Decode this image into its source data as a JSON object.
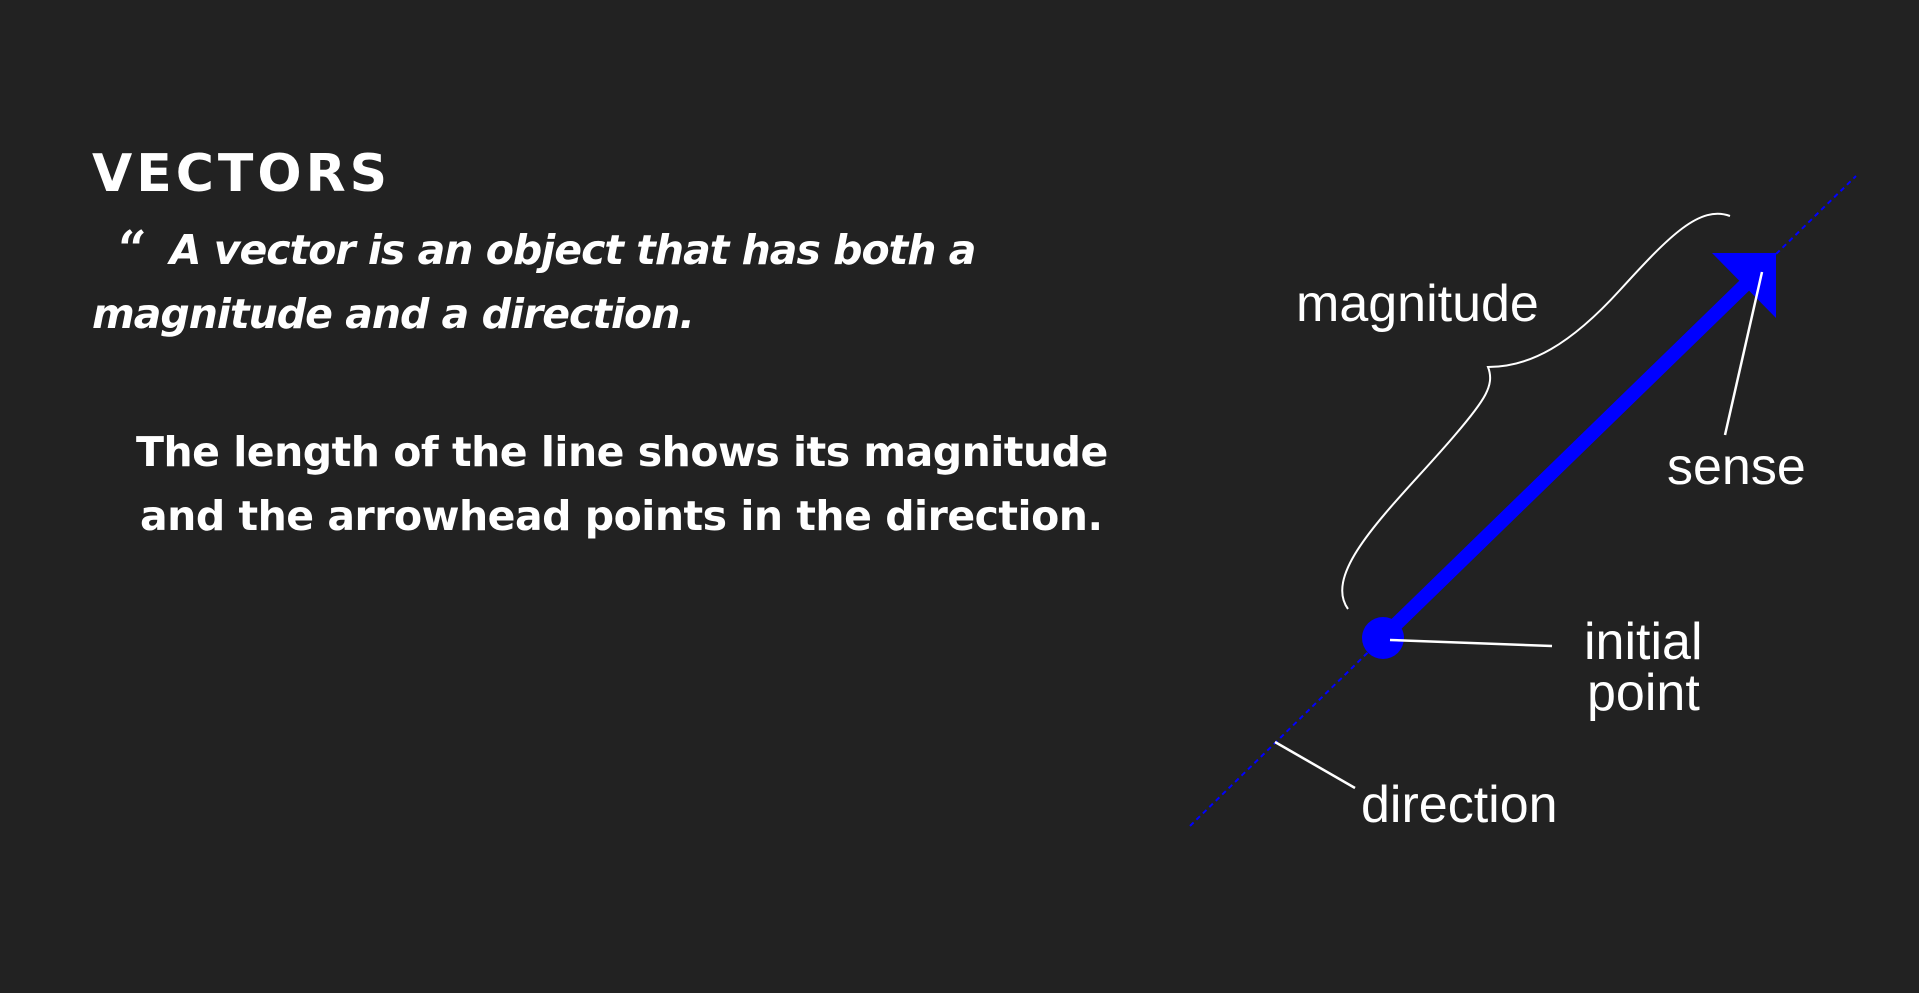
{
  "heading": "VECTORS",
  "quote": {
    "mark": "“",
    "text": "A vector is an object that has both a magnitude and a direction."
  },
  "explanation": {
    "line1": "The length of the line shows its magnitude",
    "line2": "and the arrowhead points in the direction."
  },
  "diagram": {
    "labels": {
      "magnitude": "magnitude",
      "sense": "sense",
      "initial_line1": "initial",
      "initial_line2": "point",
      "direction": "direction"
    },
    "colors": {
      "vector": "#0000ff",
      "annotation": "#ffffff",
      "background": "#222222"
    }
  }
}
